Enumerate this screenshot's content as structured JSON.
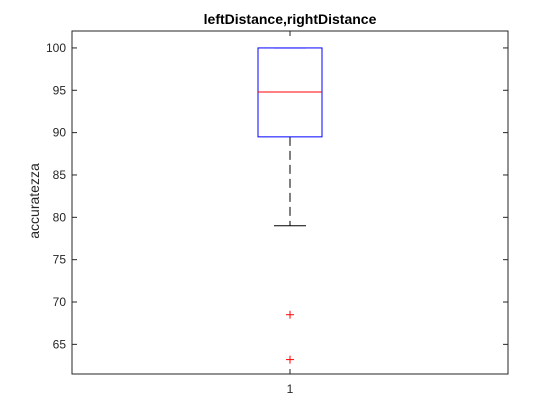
{
  "chart_data": {
    "type": "boxplot",
    "title": "leftDistance,rightDistance",
    "xlabel": "",
    "ylabel": "accuratezza",
    "categories": [
      "1"
    ],
    "ylim": [
      61.5,
      102
    ],
    "yticks": [
      65,
      70,
      75,
      80,
      85,
      90,
      95,
      100
    ],
    "grid": false,
    "boxes": [
      {
        "category": "1",
        "q1": 89.5,
        "median": 94.8,
        "q3": 100,
        "whisker_low": 79,
        "whisker_high": 100,
        "outliers": [
          68.5,
          63.2
        ]
      }
    ],
    "colors": {
      "box": "#0000ff",
      "median": "#ff0000",
      "whisker": "#000000",
      "outlier": "#ff0000",
      "axes": "#262626"
    }
  }
}
